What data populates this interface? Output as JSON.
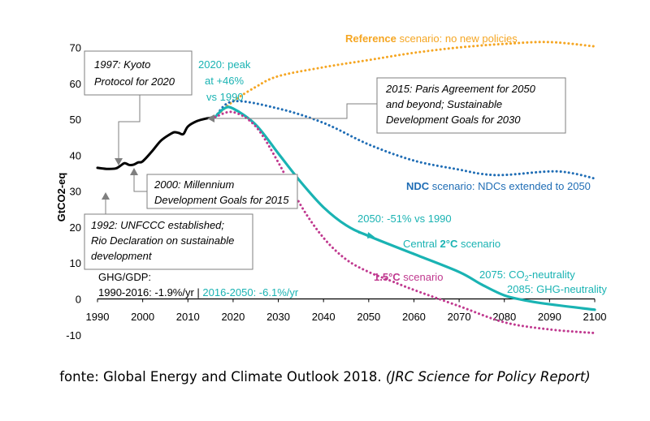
{
  "chart_data": {
    "type": "line",
    "ylabel": "GtCO2-eq",
    "xlim": [
      1990,
      2100
    ],
    "ylim": [
      -10,
      70
    ],
    "x_ticks": [
      1990,
      2000,
      2010,
      2020,
      2030,
      2040,
      2050,
      2060,
      2070,
      2080,
      2090,
      2100
    ],
    "y_ticks": [
      70,
      60,
      50,
      40,
      30,
      20,
      10,
      0,
      -10
    ],
    "series": [
      {
        "name": "Historical",
        "color": "#000000",
        "style": "solid",
        "x": [
          1990,
          1992,
          1994,
          1995,
          1996,
          1997,
          1998,
          1999,
          2000,
          2002,
          2004,
          2006,
          2007,
          2008,
          2009,
          2010,
          2012,
          2014,
          2016
        ],
        "y": [
          36.5,
          36.2,
          36.3,
          37.0,
          37.8,
          37.3,
          37.4,
          38.0,
          38.3,
          41.0,
          44.0,
          45.8,
          46.4,
          46.2,
          45.9,
          48.0,
          49.5,
          50.2,
          50.6
        ]
      },
      {
        "name": "Reference scenario",
        "color": "#F5A623",
        "style": "dotted",
        "x": [
          2016,
          2020,
          2025,
          2030,
          2040,
          2050,
          2060,
          2070,
          2080,
          2090,
          2100
        ],
        "y": [
          50.6,
          55,
          59,
          62,
          64.5,
          66.5,
          68.5,
          70,
          71,
          71.5,
          70.3
        ]
      },
      {
        "name": "NDC scenario",
        "color": "#1F6DB5",
        "style": "dotted",
        "x": [
          2016,
          2020,
          2030,
          2040,
          2050,
          2060,
          2070,
          2075,
          2080,
          2090,
          2095,
          2100
        ],
        "y": [
          50.6,
          55,
          53,
          49,
          43,
          38.5,
          36,
          34.8,
          34.5,
          35.5,
          35,
          33.5
        ]
      },
      {
        "name": "Central 2°C scenario",
        "color": "#1AB3B3",
        "style": "solid",
        "x": [
          2016,
          2018,
          2020,
          2025,
          2030,
          2035,
          2040,
          2045,
          2050,
          2060,
          2070,
          2075,
          2080,
          2085,
          2090,
          2100
        ],
        "y": [
          50.6,
          53.0,
          53.0,
          48.5,
          40.5,
          32.5,
          25.5,
          20.5,
          17.5,
          12.5,
          7.5,
          4.0,
          1.0,
          -0.5,
          -1.5,
          -3.0
        ]
      },
      {
        "name": "1.5°C scenario",
        "color": "#C0398F",
        "style": "dotted",
        "x": [
          2016,
          2020,
          2025,
          2030,
          2035,
          2040,
          2045,
          2050,
          2055,
          2060,
          2070,
          2080,
          2090,
          2100
        ],
        "y": [
          50.6,
          52.0,
          48.0,
          38.0,
          26.0,
          17.0,
          11.0,
          7.5,
          5.0,
          2.5,
          -2.0,
          -6.5,
          -8.5,
          -9.5
        ]
      }
    ],
    "annotations": {
      "reference_label_bold": "Reference",
      "reference_label_rest": " scenario: no new policies",
      "ndc_label_bold": "NDC",
      "ndc_label_rest": " scenario: NDCs extended to 2050",
      "peak_line1": "2020: peak",
      "peak_line2": "at +46%",
      "peak_line3": "vs 1990",
      "reduction_2050": "2050: -51% vs 1990",
      "central_prefix": "Central ",
      "central_bold": "2°C",
      "central_suffix": " scenario",
      "one5_bold": "1.5°C",
      "one5_rest": " scenario",
      "neutral_co2_a": "2075: CO",
      "neutral_co2_sub": "2",
      "neutral_co2_b": "-neutrality",
      "neutral_ghg": "2085: GHG-neutrality",
      "kyoto_line1": "1997: Kyoto",
      "kyoto_line2": "Protocol for 2020",
      "paris_line1": "2015: Paris Agreement for 2050",
      "paris_line2": "and beyond; Sustainable",
      "paris_line3": "Development Goals for 2030",
      "mdg_line1": "2000: Millennium",
      "mdg_line2": "Development Goals for 2015",
      "unfccc_line1": "1992: UNFCCC established;",
      "unfccc_line2": "Rio Declaration on sustainable",
      "unfccc_line3": "development",
      "ghg_gdp_line1": "GHG/GDP:",
      "ghg_gdp_hist": "1990-2016: -1.9%/yr",
      "ghg_gdp_sep": " | ",
      "ghg_gdp_future": "2016-2050: -6.1%/yr"
    }
  },
  "caption": {
    "main": "fonte: Global Energy and Climate Outlook 2018. ",
    "source": "(JRC Science for Policy Report)"
  },
  "colors": {
    "reference": "#F5A623",
    "ndc": "#1F6DB5",
    "central": "#1AB3B3",
    "one5": "#C0398F",
    "historical": "#000000",
    "callout_border": "#7F7F7F"
  }
}
